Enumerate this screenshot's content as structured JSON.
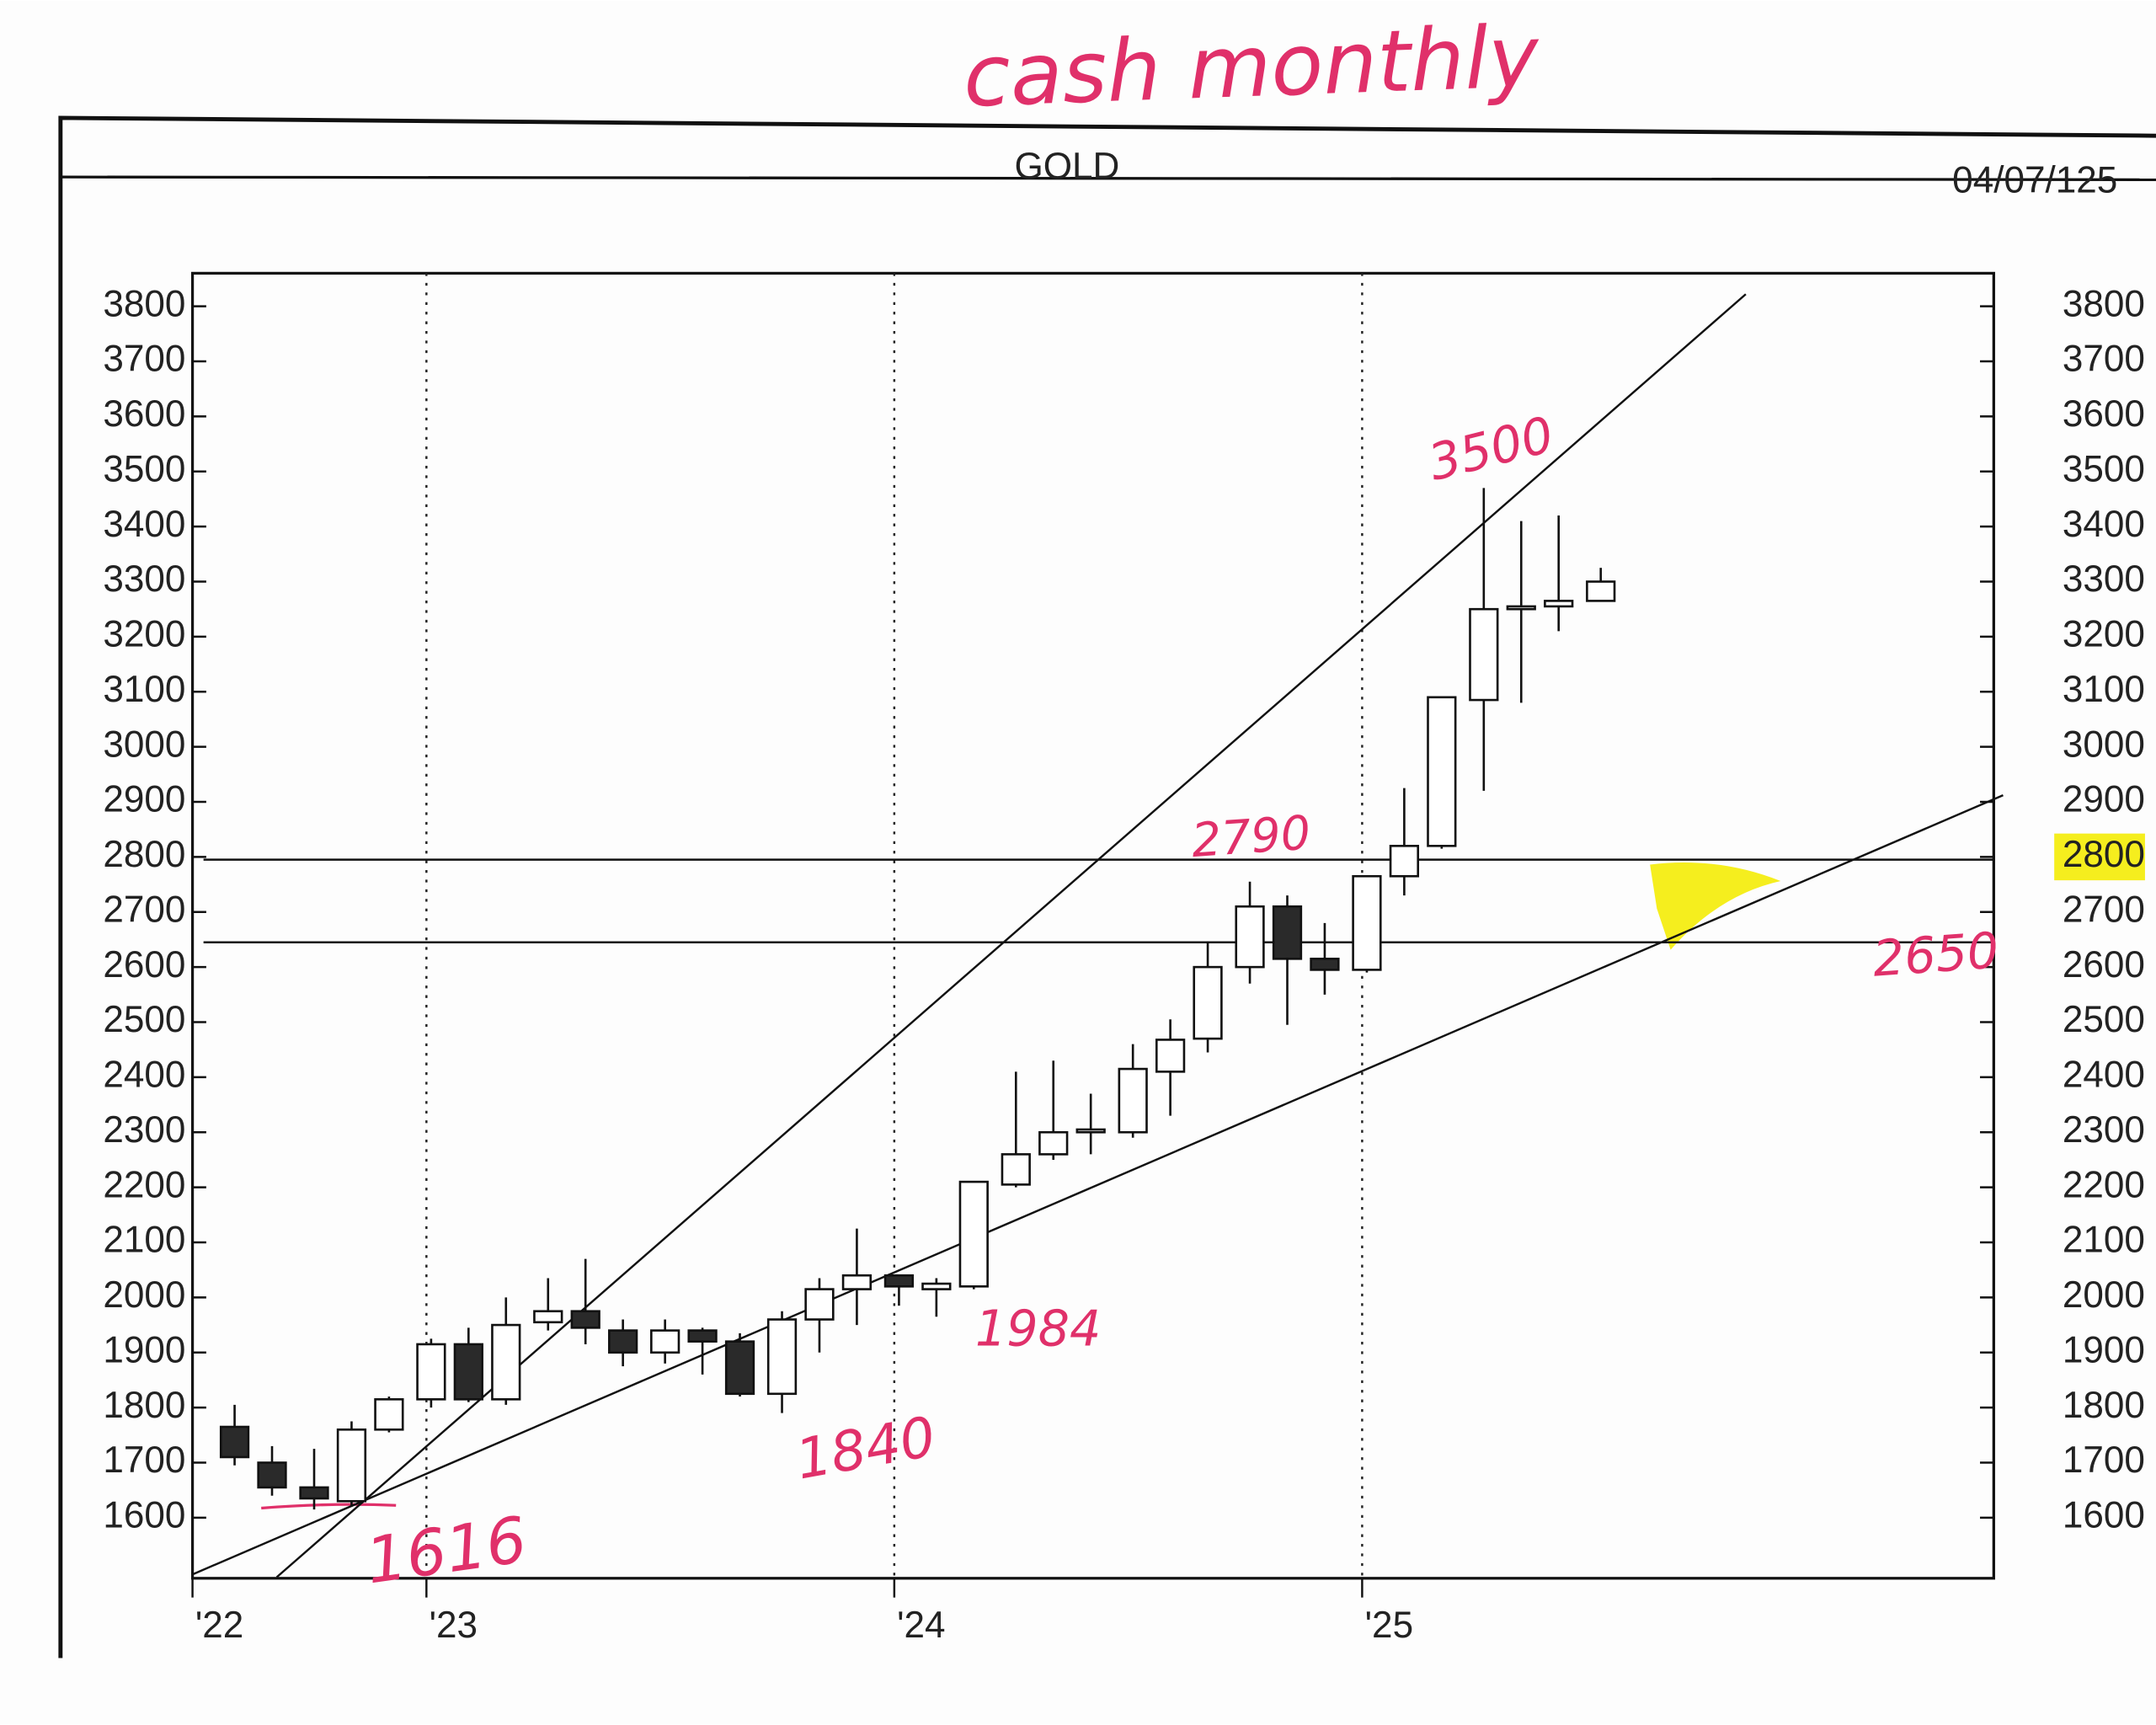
{
  "chart_data": {
    "type": "candlestick",
    "title": "GOLD",
    "date": "04/07/125",
    "x": [
      2022.59,
      2022.67,
      2022.76,
      2022.84,
      2022.92,
      2023.01,
      2023.09,
      2023.17,
      2023.26,
      2023.34,
      2023.42,
      2023.51,
      2023.59,
      2023.67,
      2023.76,
      2023.84,
      2023.92,
      2024.01,
      2024.09,
      2024.17,
      2024.26,
      2024.34,
      2024.42,
      2024.51,
      2024.59,
      2024.67,
      2024.76,
      2024.84,
      2024.92,
      2025.01,
      2025.09,
      2025.17,
      2025.26,
      2025.34,
      2025.42,
      2025.51
    ],
    "open": [
      1765,
      1700,
      1655,
      1630,
      1760,
      1815,
      1915,
      1815,
      1955,
      1975,
      1940,
      1900,
      1940,
      1920,
      1825,
      1960,
      2015,
      2040,
      2015,
      2020,
      2205,
      2260,
      2300,
      2300,
      2410,
      2470,
      2600,
      2710,
      2615,
      2595,
      2765,
      2820,
      3085,
      3250,
      3255,
      3265
    ],
    "high": [
      1805,
      1730,
      1725,
      1775,
      1820,
      1925,
      1945,
      2000,
      2035,
      2070,
      1960,
      1960,
      1945,
      1935,
      1975,
      2035,
      2125,
      2040,
      2035,
      2210,
      2410,
      2430,
      2370,
      2460,
      2505,
      2645,
      2755,
      2730,
      2680,
      2765,
      2925,
      3090,
      3470,
      3410,
      3420,
      3325
    ],
    "low": [
      1695,
      1640,
      1615,
      1620,
      1755,
      1800,
      1810,
      1805,
      1940,
      1915,
      1875,
      1880,
      1860,
      1820,
      1790,
      1900,
      1950,
      1985,
      1965,
      2015,
      2200,
      2250,
      2260,
      2290,
      2330,
      2445,
      2570,
      2495,
      2550,
      2590,
      2730,
      2815,
      2920,
      3080,
      3210,
      3265
    ],
    "close": [
      1710,
      1655,
      1635,
      1760,
      1815,
      1915,
      1815,
      1950,
      1975,
      1945,
      1900,
      1940,
      1920,
      1825,
      1960,
      2015,
      2040,
      2020,
      2025,
      2210,
      2260,
      2300,
      2305,
      2415,
      2468,
      2600,
      2710,
      2615,
      2595,
      2765,
      2820,
      3090,
      3250,
      3255,
      3265,
      3300
    ],
    "up_color": "#ffffff",
    "down_color": "#2a2a2a",
    "xlim": [
      2022.5,
      2026.35
    ],
    "xticks": [
      {
        "value": 2022.5,
        "label": "'22"
      },
      {
        "value": 2023,
        "label": "'23"
      },
      {
        "value": 2024,
        "label": "'24"
      },
      {
        "value": 2025,
        "label": "'25"
      }
    ],
    "ylim": [
      1490,
      3860
    ],
    "yticks": [
      1600,
      1700,
      1800,
      1900,
      2000,
      2100,
      2200,
      2300,
      2400,
      2500,
      2600,
      2700,
      2800,
      2900,
      3000,
      3100,
      3200,
      3300,
      3400,
      3500,
      3600,
      3700,
      3800
    ],
    "y2lim": [
      1490,
      3860
    ],
    "y2ticks": [
      1600,
      1700,
      1800,
      1900,
      2000,
      2100,
      2200,
      2300,
      2400,
      2500,
      2600,
      2700,
      2800,
      2900,
      3000,
      3100,
      3200,
      3300,
      3400,
      3500,
      3600,
      3700,
      3800
    ],
    "highlight_tick": 12,
    "grid": true,
    "horizontal_lines": [
      2795,
      2645
    ],
    "trend_lines": [
      {
        "x": [
          2022.68,
          2025.82
        ],
        "y": [
          1492,
          3822
        ]
      },
      {
        "x": [
          2022.5,
          2026.37
        ],
        "y": [
          1497,
          2912
        ]
      }
    ],
    "annotations": [
      "cash monthly",
      "3500",
      "2790",
      "1984",
      "1840",
      "1616",
      "2650"
    ],
    "annotation_color": "#e0306a",
    "highlight_color": "#f5ee1e"
  }
}
